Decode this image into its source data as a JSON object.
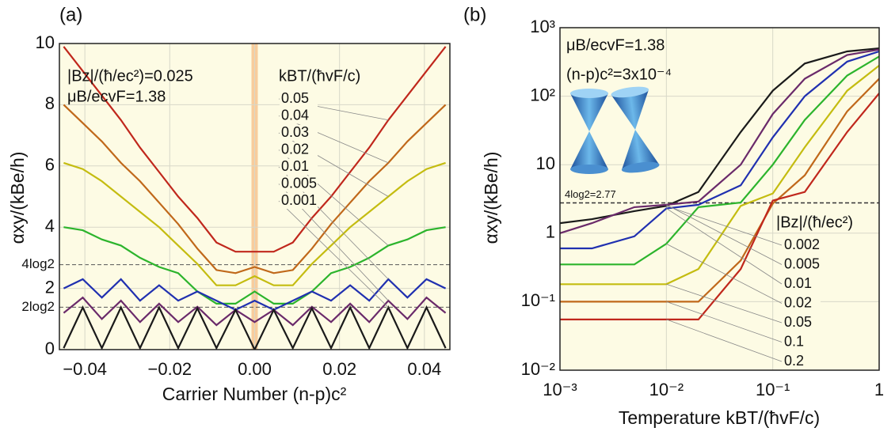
{
  "chart_data": [
    {
      "type": "line",
      "panel_label": "(a)",
      "x_label": "Carrier Number (n-p)c²",
      "y_label": "αxy/(kBe/h)",
      "annotations": [
        "|Bz|/(ħ/ec²)=0.025",
        "μB/ecvF=1.38"
      ],
      "legend_title": "kBT/(ħvF/c)",
      "xlim": [
        -0.046,
        0.046
      ],
      "ylim": [
        0,
        10
      ],
      "xticks": [
        {
          "value": -0.04,
          "label": "−0.04"
        },
        {
          "value": -0.02,
          "label": "−0.02"
        },
        {
          "value": 0,
          "label": "0.00"
        },
        0.02,
        0.04
      ],
      "yticks": [
        0,
        {
          "value": 1.386,
          "label": "2log2"
        },
        2,
        {
          "value": 2.773,
          "label": "4log2"
        },
        4,
        6,
        8,
        10
      ],
      "grid": true,
      "x": [
        -0.045,
        -0.0405,
        -0.036,
        -0.0315,
        -0.027,
        -0.0225,
        -0.018,
        -0.0135,
        -0.009,
        -0.0045,
        0,
        0.0045,
        0.009,
        0.0135,
        0.018,
        0.0225,
        0.027,
        0.0315,
        0.036,
        0.0405,
        0.045
      ],
      "series": [
        {
          "name": "0.05",
          "color": "#c0271c",
          "values": [
            9.9,
            9.1,
            8.3,
            7.5,
            6.6,
            5.8,
            5.0,
            4.3,
            3.5,
            3.2,
            3.2,
            3.2,
            3.5,
            4.3,
            5.0,
            5.8,
            6.6,
            7.5,
            8.3,
            9.1,
            9.9
          ]
        },
        {
          "name": "0.04",
          "color": "#c0681a",
          "values": [
            8.0,
            7.4,
            6.8,
            6.1,
            5.5,
            4.8,
            4.1,
            3.3,
            2.6,
            2.5,
            2.7,
            2.5,
            2.6,
            3.3,
            4.1,
            4.8,
            5.5,
            6.1,
            6.8,
            7.4,
            8.0
          ]
        },
        {
          "name": "0.03",
          "color": "#c4bc10",
          "values": [
            6.1,
            5.9,
            5.5,
            5.0,
            4.5,
            4.0,
            3.4,
            2.8,
            2.1,
            2.1,
            2.4,
            2.1,
            2.1,
            2.8,
            3.4,
            4.0,
            4.5,
            5.0,
            5.5,
            5.9,
            6.1
          ]
        },
        {
          "name": "0.02",
          "color": "#2cb42c",
          "values": [
            4.0,
            3.9,
            3.6,
            3.4,
            3.0,
            2.7,
            2.5,
            1.9,
            1.5,
            1.5,
            1.9,
            1.5,
            1.5,
            1.9,
            2.5,
            2.7,
            3.0,
            3.4,
            3.6,
            3.9,
            4.0
          ]
        },
        {
          "name": "0.01",
          "color": "#2030b0",
          "values": [
            2.0,
            2.3,
            1.7,
            2.3,
            1.6,
            2.1,
            1.6,
            1.9,
            1.6,
            1.3,
            1.6,
            1.3,
            1.6,
            1.9,
            1.6,
            2.1,
            1.6,
            2.3,
            1.7,
            2.3,
            2.0
          ]
        },
        {
          "name": "0.005",
          "color": "#6a2a6a",
          "values": [
            1.2,
            1.7,
            1.0,
            1.6,
            0.9,
            1.5,
            0.9,
            1.4,
            0.8,
            1.3,
            0.9,
            1.3,
            0.8,
            1.4,
            0.9,
            1.5,
            0.9,
            1.6,
            1.0,
            1.7,
            1.2
          ]
        },
        {
          "name": "0.001",
          "color": "#1a1a1a",
          "values": [
            0.05,
            1.38,
            0.05,
            1.38,
            0.05,
            1.38,
            0.05,
            1.35,
            0.05,
            1.3,
            0,
            1.3,
            0.05,
            1.35,
            0.05,
            1.38,
            0.05,
            1.38,
            0.05,
            1.38,
            0.05
          ]
        }
      ]
    },
    {
      "type": "line",
      "panel_label": "(b)",
      "x_label": "Temperature kBT/(ħvF/c)",
      "y_label": "αxy/(kBe/h)",
      "annotations": [
        "μB/ecvF=1.38",
        "(n-p)c²=3x10⁻⁴"
      ],
      "legend_title": "|Bz|/(ħ/ec²)",
      "xscale": "log",
      "yscale": "log",
      "xlim": [
        0.001,
        1
      ],
      "ylim": [
        0.01,
        1000
      ],
      "xticks": [
        {
          "value": 0.001,
          "label": "10⁻³"
        },
        {
          "value": 0.01,
          "label": "10⁻²"
        },
        {
          "value": 0.1,
          "label": "10⁻¹"
        },
        1
      ],
      "yticks": [
        {
          "value": 0.01,
          "label": "10⁻²"
        },
        {
          "value": 0.1,
          "label": "10⁻¹"
        },
        1,
        10,
        {
          "value": 100,
          "label": "10²"
        },
        {
          "value": 1000,
          "label": "10³"
        }
      ],
      "grid": true,
      "reference_line": {
        "value": 2.77,
        "label": "4log2=2.77"
      },
      "x": [
        0.001,
        0.002,
        0.005,
        0.01,
        0.02,
        0.05,
        0.1,
        0.2,
        0.5,
        1
      ],
      "series": [
        {
          "name": "0.002",
          "color": "#1a1a1a",
          "values": [
            1.4,
            1.6,
            2.1,
            2.5,
            4,
            30,
            120,
            300,
            450,
            500
          ]
        },
        {
          "name": "0.005",
          "color": "#6a2a6a",
          "values": [
            1.0,
            1.4,
            2.4,
            2.6,
            2.9,
            10,
            55,
            180,
            400,
            480
          ]
        },
        {
          "name": "0.01",
          "color": "#2030b0",
          "values": [
            0.6,
            0.6,
            0.9,
            2.3,
            2.6,
            5,
            25,
            100,
            320,
            450
          ]
        },
        {
          "name": "0.02",
          "color": "#2cb42c",
          "values": [
            0.35,
            0.35,
            0.35,
            0.7,
            2.4,
            2.8,
            10,
            45,
            200,
            380
          ]
        },
        {
          "name": "0.05",
          "color": "#c4bc10",
          "values": [
            0.18,
            0.18,
            0.18,
            0.18,
            0.3,
            2.5,
            3.8,
            18,
            120,
            280
          ]
        },
        {
          "name": "0.1",
          "color": "#c0681a",
          "values": [
            0.1,
            0.1,
            0.1,
            0.1,
            0.1,
            0.4,
            2.7,
            7,
            60,
            180
          ]
        },
        {
          "name": "0.2",
          "color": "#c0271c",
          "values": [
            0.055,
            0.055,
            0.055,
            0.055,
            0.055,
            0.3,
            3,
            4,
            30,
            110
          ]
        }
      ]
    }
  ]
}
